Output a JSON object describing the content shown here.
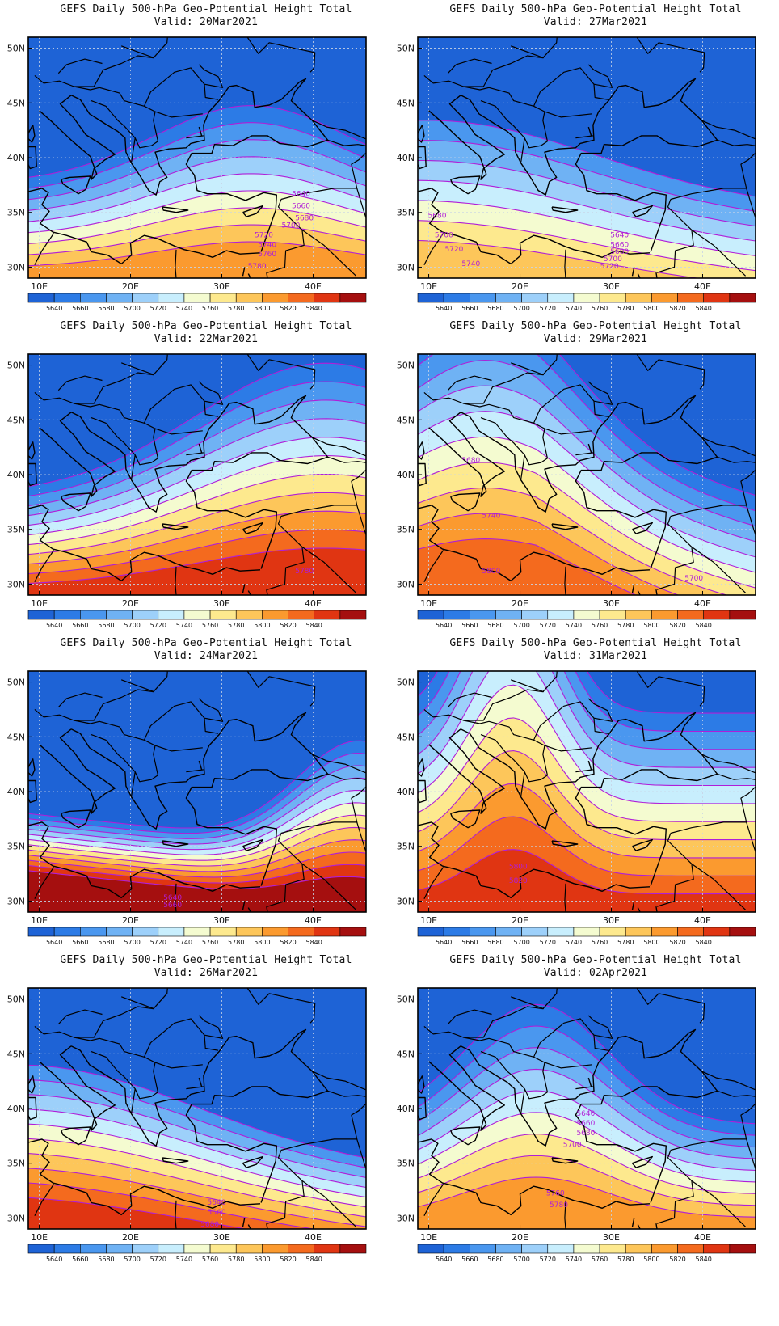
{
  "figure": {
    "title_line1": "GEFS Daily 500-hPa Geo-Potential Height Total",
    "valid_prefix": "Valid:",
    "lat_labels": [
      "50N",
      "45N",
      "40N",
      "35N",
      "30N"
    ],
    "lon_labels": [
      "10E",
      "20E",
      "30E",
      "40E"
    ],
    "colorbar_levels": [
      "5640",
      "5660",
      "5680",
      "5700",
      "5720",
      "5740",
      "5760",
      "5780",
      "5800",
      "5820",
      "5840"
    ],
    "colorbar_colors": [
      "#1e63d6",
      "#2c7be6",
      "#4a97ef",
      "#6fb2f4",
      "#9dd0fa",
      "#c8eefd",
      "#f4fbd0",
      "#fde98e",
      "#fdc65a",
      "#fb9a2f",
      "#f46a1e",
      "#e03512",
      "#a50f0f"
    ],
    "contour_color": "#b01ed8",
    "land_outline_color": "#000000"
  },
  "panels": [
    {
      "valid": "20Mar2021",
      "contour_labels": [
        "5640",
        "5660",
        "5680",
        "5700",
        "5720",
        "5740",
        "5760",
        "5780"
      ]
    },
    {
      "valid": "27Mar2021",
      "contour_labels": [
        "5680",
        "5700",
        "5720",
        "5740",
        "5640",
        "5660",
        "5680",
        "5700",
        "5720"
      ]
    },
    {
      "valid": "22Mar2021",
      "contour_labels": [
        "5780"
      ]
    },
    {
      "valid": "29Mar2021",
      "contour_labels": [
        "5680",
        "5740",
        "5800",
        "5700"
      ]
    },
    {
      "valid": "24Mar2021",
      "contour_labels": [
        "5640",
        "5660"
      ]
    },
    {
      "valid": "31Mar2021",
      "contour_labels": [
        "5800",
        "5820"
      ]
    },
    {
      "valid": "26Mar2021",
      "contour_labels": [
        "5640",
        "5660",
        "5680"
      ]
    },
    {
      "valid": "02Apr2021",
      "contour_labels": [
        "5640",
        "5660",
        "5680",
        "5700",
        "5760",
        "5780"
      ]
    }
  ]
}
